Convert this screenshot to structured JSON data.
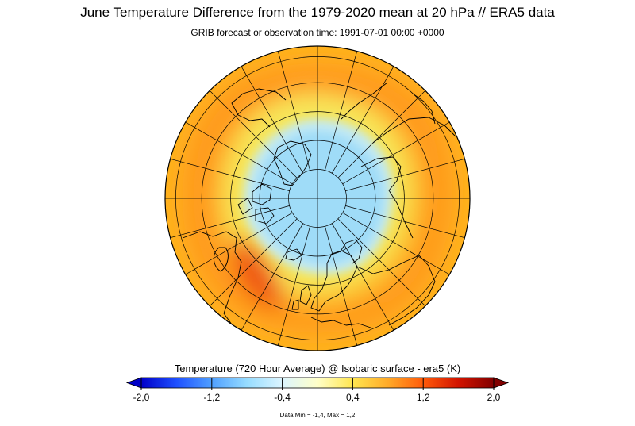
{
  "title": "June Temperature Difference from the 1979-2020 mean at 20 hPa // ERA5 data",
  "subtitle": "GRIB forecast or observation time: 1991-07-01 00:00 +0000",
  "colorbar": {
    "label": "Temperature (720 Hour Average) @ Isobaric surface - era5 (K)",
    "min": -2.0,
    "max": 2.0,
    "ticks": [
      "-2,0",
      "-1,2",
      "-0,4",
      "0,4",
      "1,2",
      "2,0"
    ],
    "colors": [
      "#0000c8",
      "#1e50ff",
      "#50a0ff",
      "#96dcff",
      "#dcf5ff",
      "#ffffc8",
      "#ffe650",
      "#ffaa28",
      "#ff5a0a",
      "#d21400",
      "#820000"
    ]
  },
  "data_min_max": "Data Min = -1,4, Max = 1,2",
  "map": {
    "projection": "north-polar-stereographic",
    "background_color": "#ffb21e",
    "anomaly_regions": [
      {
        "name": "polar-cold-core",
        "value": -0.6,
        "color": "#9fdcf8"
      },
      {
        "name": "polar-cold-halo",
        "value": -0.2,
        "color": "#c2eaf5"
      },
      {
        "name": "surrounding-neutral",
        "value": 0.2,
        "color": "#f7e75a"
      },
      {
        "name": "mid-latitude-warm",
        "value": 0.8,
        "color": "#ff9a1e"
      },
      {
        "name": "europe-warm-max",
        "value": 1.2,
        "color": "#ee4a10"
      }
    ]
  }
}
